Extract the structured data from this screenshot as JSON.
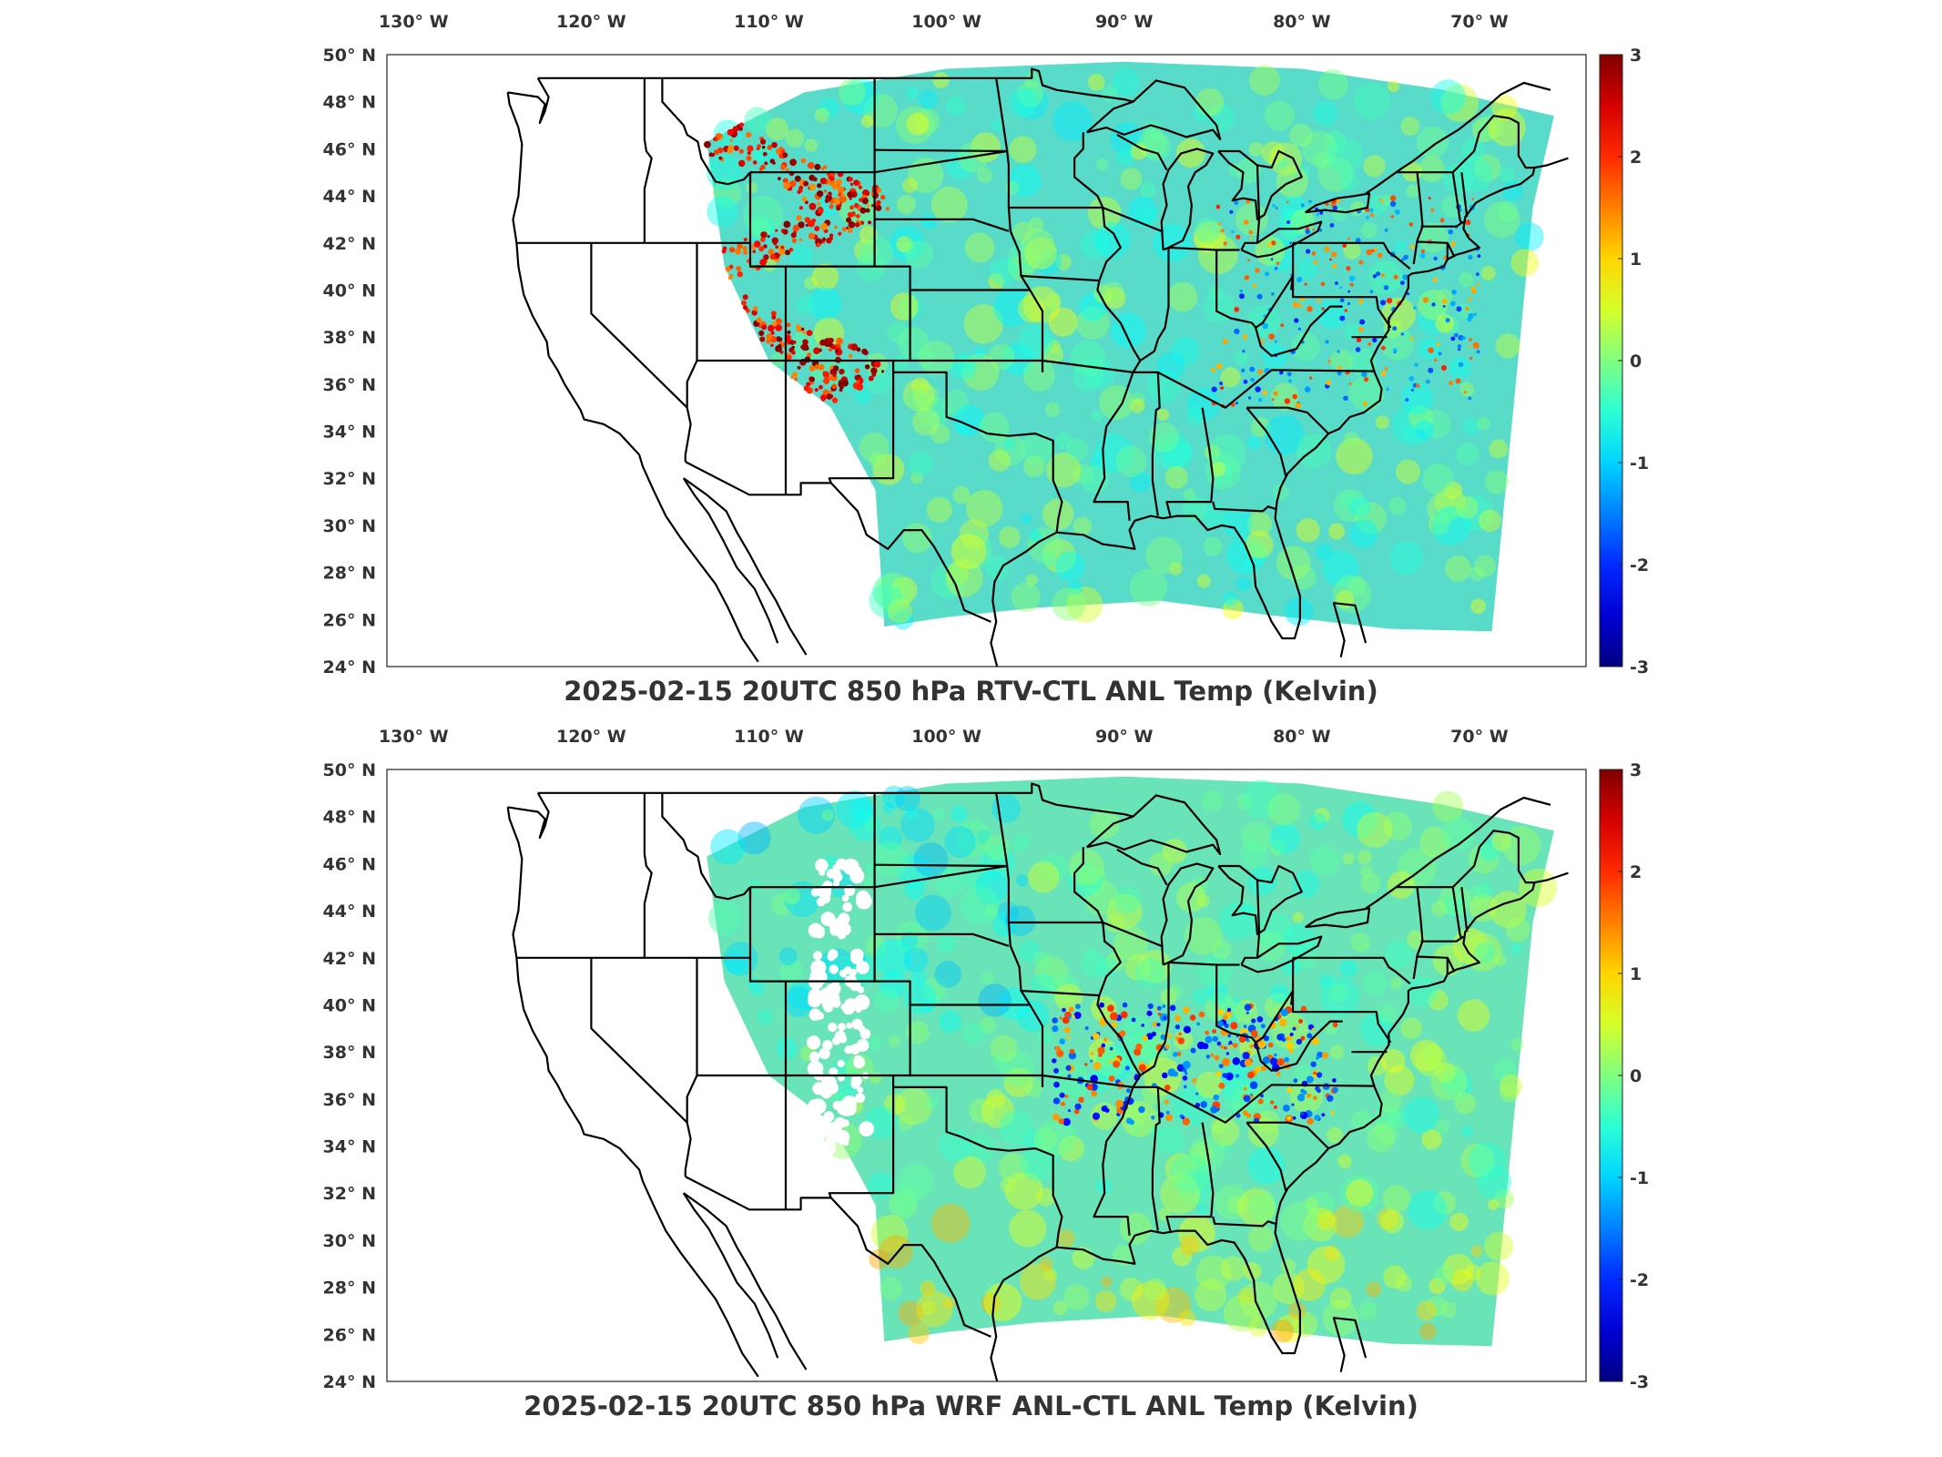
{
  "panels": [
    {
      "title": "2025-02-15 20UTC 850 hPa RTV-CTL ANL Temp (Kelvin)",
      "variant": "rtv"
    },
    {
      "title": "2025-02-15 20UTC 850 hPa WRF ANL-CTL ANL Temp (Kelvin)",
      "variant": "wrf"
    }
  ],
  "lon_labels": [
    "130° W",
    "120° W",
    "110° W",
    "100° W",
    "90° W",
    "80° W",
    "70° W"
  ],
  "lat_labels": [
    "50° N",
    "48° N",
    "46° N",
    "44° N",
    "42° N",
    "40° N",
    "38° N",
    "36° N",
    "34° N",
    "32° N",
    "30° N",
    "28° N",
    "26° N",
    "24° N"
  ],
  "lons": [
    -130,
    -120,
    -110,
    -100,
    -90,
    -80,
    -70
  ],
  "lats": [
    50,
    48,
    46,
    44,
    42,
    40,
    38,
    36,
    34,
    32,
    30,
    28,
    26,
    24
  ],
  "colorbar": {
    "min": -3,
    "max": 3,
    "ticks": [
      "3",
      "2",
      "1",
      "0",
      "-1",
      "-2",
      "-3"
    ],
    "colormap": "jet"
  },
  "colors": {
    "field_base": "#5fe0c8",
    "outline": "#000000"
  }
}
